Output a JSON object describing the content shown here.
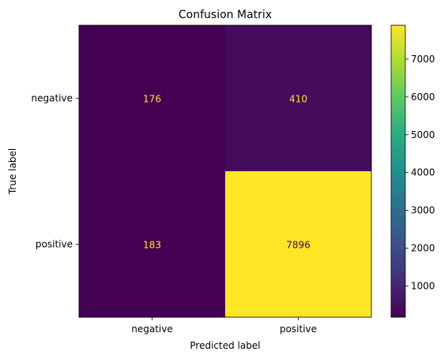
{
  "chart_data": {
    "type": "heatmap",
    "title": "Confusion Matrix",
    "xlabel": "Predicted label",
    "ylabel": "True label",
    "x_categories": [
      "negative",
      "positive"
    ],
    "y_categories": [
      "negative",
      "positive"
    ],
    "values": [
      [
        176,
        410
      ],
      [
        183,
        7896
      ]
    ],
    "colormap": "viridis",
    "color_range": [
      176,
      7896
    ],
    "colorbar_ticks": [
      1000,
      2000,
      3000,
      4000,
      5000,
      6000,
      7000
    ],
    "text_color_light": "#fde725",
    "text_color_dark": "#440154"
  }
}
